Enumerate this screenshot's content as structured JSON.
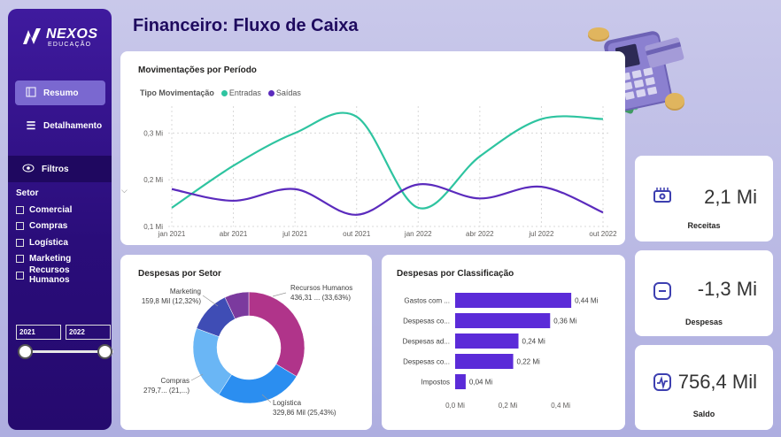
{
  "brand": {
    "name": "NEXOS",
    "subtitle": "EDUCAÇÃO"
  },
  "page_title": "Financeiro: Fluxo de Caixa",
  "nav": [
    {
      "label": "Resumo",
      "icon": "page-icon"
    },
    {
      "label": "Detalhamento",
      "icon": "menu-icon"
    }
  ],
  "filters": {
    "label": "Filtros",
    "setor_label": "Setor",
    "setor_items": [
      "Comercial",
      "Compras",
      "Logística",
      "Marketing",
      "Recursos Humanos"
    ],
    "year_from": "2021",
    "year_to": "2022",
    "slider_from": 0,
    "slider_to": 1
  },
  "mov": {
    "title": "Movimentações por Período",
    "legend_title": "Tipo Movimentação",
    "legend": [
      {
        "label": "Entradas",
        "color": "#2ec4a0"
      },
      {
        "label": "Saídas",
        "color": "#5b2bbd"
      }
    ]
  },
  "setor": {
    "title": "Despesas por Setor"
  },
  "classif": {
    "title": "Despesas por Classificação"
  },
  "chart_data": [
    {
      "type": "line",
      "title": "Movimentações por Período",
      "x": [
        "jan 2021",
        "abr 2021",
        "jul 2021",
        "out 2021",
        "jan 2022",
        "abr 2022",
        "jul 2022",
        "out 2022"
      ],
      "ytick_labels": [
        "0,1 Mi",
        "0,2 Mi",
        "0,3 Mi"
      ],
      "ylim": [
        0.1,
        0.35
      ],
      "series": [
        {
          "name": "Entradas",
          "color": "#2ec4a0",
          "values": [
            0.14,
            0.23,
            0.3,
            0.335,
            0.14,
            0.25,
            0.33,
            0.33
          ]
        },
        {
          "name": "Saídas",
          "color": "#5b2bbd",
          "values": [
            0.18,
            0.155,
            0.18,
            0.125,
            0.19,
            0.16,
            0.185,
            0.13
          ]
        }
      ]
    },
    {
      "type": "pie",
      "title": "Despesas por Setor",
      "slices": [
        {
          "name": "Recursos Humanos",
          "label": "Recursos Humanos",
          "value_label": "436,31 ... (33,63%)",
          "value": 33.63,
          "color": "#b0348a"
        },
        {
          "name": "Logística",
          "label": "Logística",
          "value_label": "329,86 Mil (25,43%)",
          "value": 25.43,
          "color": "#2b8ef0"
        },
        {
          "name": "Compras",
          "label": "Compras",
          "value_label": "279,7... (21,...)",
          "value": 21.56,
          "color": "#6ab6f5"
        },
        {
          "name": "Marketing",
          "label": "Marketing",
          "value_label": "159,8 Mil (12,32%)",
          "value": 12.32,
          "color": "#3f4db5"
        },
        {
          "name": "Comercial",
          "value": 7.06,
          "color": "#7b3a9e"
        }
      ]
    },
    {
      "type": "bar",
      "orientation": "horizontal",
      "title": "Despesas por Classificação",
      "categories": [
        "Gastos com ...",
        "Despesas co...",
        "Despesas ad...",
        "Despesas co...",
        "Impostos"
      ],
      "values": [
        0.44,
        0.36,
        0.24,
        0.22,
        0.04
      ],
      "value_labels": [
        "0,44 Mi",
        "0,36 Mi",
        "0,24 Mi",
        "0,22 Mi",
        "0,04 Mi"
      ],
      "xtick_labels": [
        "0,0 Mi",
        "0,2 Mi",
        "0,4 Mi"
      ],
      "xlim": [
        0,
        0.5
      ],
      "color": "#5b2bd8"
    }
  ],
  "kpis": [
    {
      "value": "2,1 Mi",
      "label": "Receitas",
      "icon": "wallet-icon"
    },
    {
      "value": "-1,3 Mi",
      "label": "Despesas",
      "icon": "minus-icon"
    },
    {
      "value": "756,4 Mil",
      "label": "Saldo",
      "icon": "activity-icon"
    }
  ],
  "colors": {
    "sidebar": "#2a0d7a",
    "accent": "#5b2bd8",
    "teal": "#2ec4a0",
    "kpi_icon": "#3d3fb0"
  }
}
